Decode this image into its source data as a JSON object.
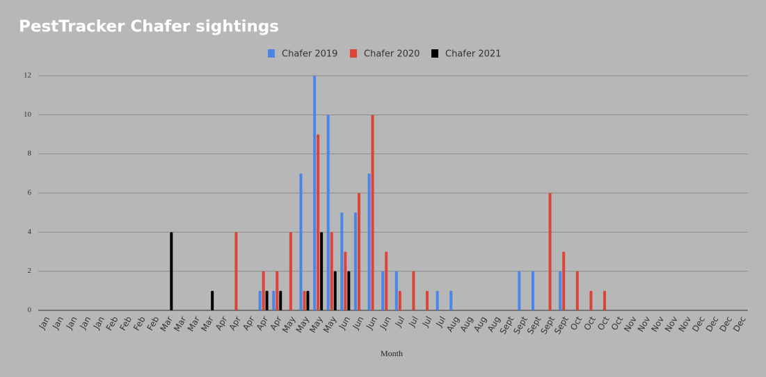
{
  "chart_data": {
    "type": "bar",
    "title": "PestTracker Chafer sightings",
    "x_label": "Month",
    "categories": [
      "Jan",
      "Jan",
      "Jan",
      "Jan",
      "Jan",
      "Feb",
      "Feb",
      "Feb",
      "Feb",
      "Mar",
      "Mar",
      "Mar",
      "Mar",
      "Apr",
      "Apr",
      "Apr",
      "Apr",
      "Apr",
      "May",
      "May",
      "May",
      "May",
      "Jun",
      "Jun",
      "Jun",
      "Jun",
      "Jul",
      "Jul",
      "Jul",
      "Jul",
      "Aug",
      "Aug",
      "Aug",
      "Aug",
      "Sept",
      "Sept",
      "Sept",
      "Sept",
      "Sept",
      "Oct",
      "Oct",
      "Oct",
      "Oct",
      "Nov",
      "Nov",
      "Nov",
      "Nov",
      "Nov",
      "Dec",
      "Dec",
      "Dec",
      "Dec"
    ],
    "series": [
      {
        "name": "Chafer 2019",
        "color": "#4a86e8",
        "values": [
          null,
          null,
          null,
          null,
          null,
          null,
          null,
          null,
          null,
          null,
          null,
          null,
          null,
          null,
          null,
          null,
          1,
          1,
          null,
          7,
          12,
          10,
          5,
          5,
          7,
          2,
          2,
          null,
          null,
          1,
          1,
          null,
          null,
          null,
          null,
          2,
          2,
          null,
          2,
          null,
          null,
          null,
          null,
          null,
          null,
          null,
          null,
          null,
          null,
          null,
          null,
          null
        ]
      },
      {
        "name": "Chafer 2020",
        "color": "#db4437",
        "values": [
          null,
          null,
          null,
          null,
          null,
          null,
          null,
          null,
          null,
          null,
          null,
          null,
          null,
          null,
          4,
          null,
          2,
          2,
          4,
          1,
          9,
          4,
          3,
          6,
          10,
          3,
          1,
          2,
          1,
          null,
          null,
          null,
          null,
          null,
          null,
          null,
          null,
          6,
          3,
          2,
          1,
          1,
          null,
          null,
          null,
          null,
          null,
          null,
          null,
          null,
          null,
          null
        ]
      },
      {
        "name": "Chafer 2021",
        "color": "#000000",
        "values": [
          null,
          null,
          null,
          null,
          null,
          null,
          null,
          null,
          null,
          4,
          null,
          null,
          1,
          null,
          null,
          null,
          1,
          1,
          null,
          1,
          4,
          2,
          2,
          null,
          null,
          null,
          null,
          null,
          null,
          null,
          null,
          null,
          null,
          null,
          null,
          null,
          null,
          null,
          null,
          null,
          null,
          null,
          null,
          null,
          null,
          null,
          null,
          null,
          null,
          null,
          null,
          null
        ]
      }
    ],
    "ylim": [
      0,
      12
    ],
    "yticks": [
      0,
      2,
      4,
      6,
      8,
      10,
      12
    ],
    "grid": true
  }
}
